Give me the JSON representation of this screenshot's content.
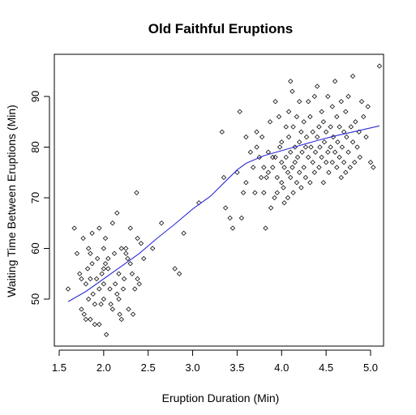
{
  "chart_data": {
    "type": "scatter",
    "title": "Old Faithful Eruptions",
    "xlabel": "Eruption Duration (Min)",
    "ylabel": "Waiting Time Between Eruptions (Min)",
    "xlim": [
      1.5,
      5.15
    ],
    "ylim": [
      41.5,
      98
    ],
    "x_ticks": [
      1.5,
      2.0,
      2.5,
      3.0,
      3.5,
      4.0,
      4.5,
      5.0
    ],
    "x_tick_labels": [
      "1.5",
      "2.0",
      "2.5",
      "3.0",
      "3.5",
      "4.0",
      "4.5",
      "5.0"
    ],
    "y_ticks": [
      50,
      60,
      70,
      80,
      90
    ],
    "y_tick_labels": [
      "50",
      "60",
      "70",
      "80",
      "90"
    ],
    "marker": "diamond",
    "grid": false,
    "colors": {
      "points": "#000000",
      "smooth_line": "#2b2bd6"
    },
    "points": [
      [
        1.6,
        52
      ],
      [
        1.67,
        64
      ],
      [
        1.7,
        59
      ],
      [
        1.73,
        55
      ],
      [
        1.75,
        54
      ],
      [
        1.75,
        48
      ],
      [
        1.77,
        62
      ],
      [
        1.78,
        47
      ],
      [
        1.8,
        53
      ],
      [
        1.8,
        46
      ],
      [
        1.82,
        56
      ],
      [
        1.83,
        50
      ],
      [
        1.83,
        60
      ],
      [
        1.85,
        46
      ],
      [
        1.85,
        59
      ],
      [
        1.85,
        54
      ],
      [
        1.87,
        57
      ],
      [
        1.87,
        63
      ],
      [
        1.88,
        51
      ],
      [
        1.9,
        49
      ],
      [
        1.9,
        45
      ],
      [
        1.92,
        54
      ],
      [
        1.93,
        58
      ],
      [
        1.95,
        52
      ],
      [
        1.95,
        45
      ],
      [
        1.95,
        64
      ],
      [
        1.97,
        49
      ],
      [
        1.98,
        55
      ],
      [
        2.0,
        53
      ],
      [
        2.0,
        50
      ],
      [
        2.0,
        56
      ],
      [
        2.0,
        60
      ],
      [
        2.02,
        62
      ],
      [
        2.02,
        57
      ],
      [
        2.03,
        43
      ],
      [
        2.05,
        56
      ],
      [
        2.05,
        58
      ],
      [
        2.07,
        52
      ],
      [
        2.08,
        49
      ],
      [
        2.1,
        65
      ],
      [
        2.1,
        48
      ],
      [
        2.12,
        59
      ],
      [
        2.13,
        53
      ],
      [
        2.15,
        67
      ],
      [
        2.15,
        51
      ],
      [
        2.17,
        50
      ],
      [
        2.17,
        55
      ],
      [
        2.18,
        47
      ],
      [
        2.2,
        60
      ],
      [
        2.2,
        46
      ],
      [
        2.22,
        52
      ],
      [
        2.23,
        54
      ],
      [
        2.25,
        59
      ],
      [
        2.25,
        60
      ],
      [
        2.27,
        58
      ],
      [
        2.28,
        48
      ],
      [
        2.3,
        64
      ],
      [
        2.3,
        57
      ],
      [
        2.32,
        55
      ],
      [
        2.33,
        47
      ],
      [
        2.35,
        52
      ],
      [
        2.37,
        71
      ],
      [
        2.38,
        62
      ],
      [
        2.38,
        54
      ],
      [
        2.4,
        53
      ],
      [
        2.42,
        61
      ],
      [
        2.45,
        58
      ],
      [
        2.55,
        60
      ],
      [
        2.65,
        65
      ],
      [
        2.8,
        56
      ],
      [
        2.85,
        55
      ],
      [
        2.9,
        63
      ],
      [
        3.07,
        69
      ],
      [
        3.33,
        83
      ],
      [
        3.35,
        74
      ],
      [
        3.37,
        68
      ],
      [
        3.42,
        66
      ],
      [
        3.45,
        64
      ],
      [
        3.5,
        75
      ],
      [
        3.53,
        87
      ],
      [
        3.55,
        66
      ],
      [
        3.57,
        71
      ],
      [
        3.6,
        82
      ],
      [
        3.6,
        73
      ],
      [
        3.65,
        79
      ],
      [
        3.68,
        76
      ],
      [
        3.7,
        71
      ],
      [
        3.72,
        83
      ],
      [
        3.72,
        80
      ],
      [
        3.75,
        78
      ],
      [
        3.77,
        74
      ],
      [
        3.78,
        82
      ],
      [
        3.8,
        76
      ],
      [
        3.8,
        71
      ],
      [
        3.82,
        64
      ],
      [
        3.83,
        74
      ],
      [
        3.85,
        75
      ],
      [
        3.85,
        79
      ],
      [
        3.87,
        85
      ],
      [
        3.88,
        68
      ],
      [
        3.9,
        78
      ],
      [
        3.9,
        76
      ],
      [
        3.92,
        70
      ],
      [
        3.93,
        89
      ],
      [
        3.93,
        78
      ],
      [
        3.95,
        74
      ],
      [
        3.95,
        71
      ],
      [
        3.97,
        86
      ],
      [
        3.98,
        80
      ],
      [
        4.0,
        77
      ],
      [
        4.0,
        73
      ],
      [
        4.0,
        81
      ],
      [
        4.02,
        72
      ],
      [
        4.03,
        69
      ],
      [
        4.03,
        76
      ],
      [
        4.05,
        84
      ],
      [
        4.05,
        78
      ],
      [
        4.07,
        75
      ],
      [
        4.07,
        70
      ],
      [
        4.08,
        82
      ],
      [
        4.08,
        87
      ],
      [
        4.1,
        93
      ],
      [
        4.1,
        79
      ],
      [
        4.1,
        74
      ],
      [
        4.12,
        76
      ],
      [
        4.12,
        91
      ],
      [
        4.13,
        71
      ],
      [
        4.13,
        84
      ],
      [
        4.15,
        77
      ],
      [
        4.15,
        80
      ],
      [
        4.17,
        73
      ],
      [
        4.17,
        86
      ],
      [
        4.18,
        78
      ],
      [
        4.2,
        81
      ],
      [
        4.2,
        75
      ],
      [
        4.2,
        89
      ],
      [
        4.22,
        72
      ],
      [
        4.22,
        83
      ],
      [
        4.23,
        79
      ],
      [
        4.25,
        76
      ],
      [
        4.25,
        85
      ],
      [
        4.27,
        80
      ],
      [
        4.27,
        74
      ],
      [
        4.28,
        82
      ],
      [
        4.3,
        78
      ],
      [
        4.3,
        89
      ],
      [
        4.32,
        73
      ],
      [
        4.32,
        86
      ],
      [
        4.33,
        80
      ],
      [
        4.35,
        77
      ],
      [
        4.35,
        83
      ],
      [
        4.37,
        90
      ],
      [
        4.37,
        75
      ],
      [
        4.38,
        79
      ],
      [
        4.4,
        82
      ],
      [
        4.4,
        92
      ],
      [
        4.42,
        76
      ],
      [
        4.42,
        84
      ],
      [
        4.43,
        80
      ],
      [
        4.45,
        78
      ],
      [
        4.45,
        87
      ],
      [
        4.47,
        73
      ],
      [
        4.47,
        85
      ],
      [
        4.48,
        81
      ],
      [
        4.5,
        77
      ],
      [
        4.5,
        83
      ],
      [
        4.52,
        79
      ],
      [
        4.52,
        90
      ],
      [
        4.53,
        75
      ],
      [
        4.55,
        84
      ],
      [
        4.55,
        80
      ],
      [
        4.57,
        77
      ],
      [
        4.57,
        88
      ],
      [
        4.58,
        82
      ],
      [
        4.6,
        79
      ],
      [
        4.6,
        93
      ],
      [
        4.62,
        76
      ],
      [
        4.62,
        86
      ],
      [
        4.63,
        81
      ],
      [
        4.65,
        78
      ],
      [
        4.65,
        84
      ],
      [
        4.67,
        74
      ],
      [
        4.67,
        89
      ],
      [
        4.68,
        80
      ],
      [
        4.7,
        83
      ],
      [
        4.7,
        77
      ],
      [
        4.72,
        87
      ],
      [
        4.72,
        75
      ],
      [
        4.73,
        82
      ],
      [
        4.75,
        79
      ],
      [
        4.75,
        90
      ],
      [
        4.77,
        76
      ],
      [
        4.78,
        84
      ],
      [
        4.8,
        81
      ],
      [
        4.8,
        94
      ],
      [
        4.82,
        77
      ],
      [
        4.83,
        85
      ],
      [
        4.85,
        80
      ],
      [
        4.87,
        83
      ],
      [
        4.88,
        78
      ],
      [
        4.9,
        89
      ],
      [
        4.92,
        86
      ],
      [
        4.95,
        82
      ],
      [
        4.97,
        88
      ],
      [
        5.0,
        77
      ],
      [
        5.03,
        76
      ],
      [
        5.1,
        96
      ]
    ],
    "smooth_line": [
      [
        1.6,
        49.5
      ],
      [
        1.8,
        51.5
      ],
      [
        2.0,
        54.0
      ],
      [
        2.2,
        56.5
      ],
      [
        2.4,
        59.0
      ],
      [
        2.6,
        62.0
      ],
      [
        2.8,
        64.8
      ],
      [
        3.0,
        67.8
      ],
      [
        3.2,
        70.3
      ],
      [
        3.4,
        73.8
      ],
      [
        3.5,
        75.5
      ],
      [
        3.6,
        76.8
      ],
      [
        3.8,
        78.3
      ],
      [
        4.0,
        79.3
      ],
      [
        4.2,
        80.3
      ],
      [
        4.4,
        81.3
      ],
      [
        4.6,
        82.2
      ],
      [
        4.8,
        83.0
      ],
      [
        5.0,
        83.8
      ],
      [
        5.1,
        84.2
      ]
    ]
  }
}
